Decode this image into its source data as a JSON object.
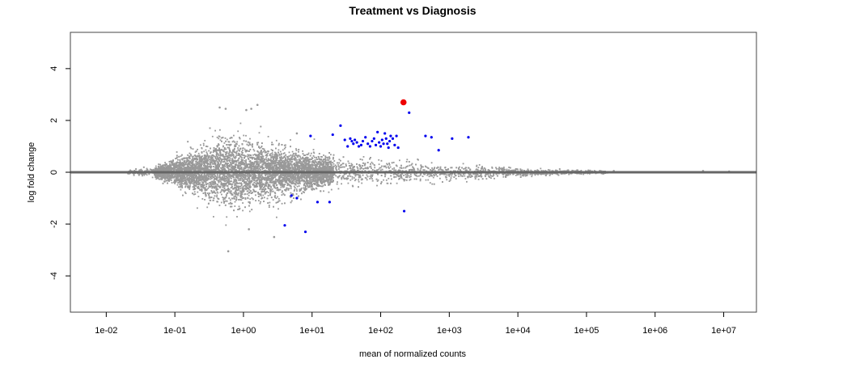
{
  "chart_data": {
    "type": "scatter",
    "title": "Treatment vs Diagnosis",
    "xlabel": "mean of normalized counts",
    "ylabel": "log fold change",
    "x_scale": "log10",
    "xlim": [
      0.003,
      30000000
    ],
    "ylim": [
      -5.4,
      5.4
    ],
    "x_ticks": [
      {
        "value": 0.01,
        "label": "1e-02"
      },
      {
        "value": 0.1,
        "label": "1e-01"
      },
      {
        "value": 1,
        "label": "1e+00"
      },
      {
        "value": 10,
        "label": "1e+01"
      },
      {
        "value": 100,
        "label": "1e+02"
      },
      {
        "value": 1000,
        "label": "1e+03"
      },
      {
        "value": 10000,
        "label": "1e+04"
      },
      {
        "value": 100000,
        "label": "1e+05"
      },
      {
        "value": 1000000,
        "label": "1e+06"
      },
      {
        "value": 10000000,
        "label": "1e+07"
      }
    ],
    "y_ticks": [
      {
        "value": 4,
        "label": "4"
      },
      {
        "value": 2,
        "label": "2"
      },
      {
        "value": 0,
        "label": "0"
      },
      {
        "value": -2,
        "label": "-2"
      },
      {
        "value": -4,
        "label": "-4"
      }
    ],
    "reference_line": {
      "y": 0,
      "color": "#666666"
    },
    "grid": false,
    "series": [
      {
        "color": "#999999",
        "cloud_bands": [
          {
            "x": 0.02,
            "spread": 0.08
          },
          {
            "x": 0.05,
            "spread": 0.18
          },
          {
            "x": 0.1,
            "spread": 0.45
          },
          {
            "x": 0.2,
            "spread": 0.8
          },
          {
            "x": 0.4,
            "spread": 1.15
          },
          {
            "x": 0.7,
            "spread": 1.25
          },
          {
            "x": 1.0,
            "spread": 1.15
          },
          {
            "x": 2.0,
            "spread": 0.95
          },
          {
            "x": 5.0,
            "spread": 0.75
          },
          {
            "x": 10,
            "spread": 0.6
          },
          {
            "x": 30,
            "spread": 0.5
          },
          {
            "x": 100,
            "spread": 0.42
          },
          {
            "x": 300,
            "spread": 0.36
          },
          {
            "x": 1000,
            "spread": 0.3
          },
          {
            "x": 3000,
            "spread": 0.22
          },
          {
            "x": 10000,
            "spread": 0.15
          },
          {
            "x": 50000,
            "spread": 0.08
          },
          {
            "x": 200000,
            "spread": 0.05
          }
        ],
        "points": [
          [
            0.45,
            2.5
          ],
          [
            0.55,
            2.45
          ],
          [
            1.1,
            2.4
          ],
          [
            1.3,
            2.45
          ],
          [
            1.6,
            2.6
          ],
          [
            0.6,
            -3.05
          ],
          [
            2.8,
            -2.5
          ],
          [
            1.2,
            -2.2
          ],
          [
            6.0,
            1.5
          ],
          [
            5000000,
            0.05
          ],
          [
            12000000,
            0.03
          ],
          [
            250000,
            0.05
          ]
        ]
      },
      {
        "color": "#0000ee",
        "points": [
          [
            9.5,
            1.4
          ],
          [
            20,
            1.45
          ],
          [
            26,
            1.8
          ],
          [
            30,
            1.25
          ],
          [
            33,
            1.0
          ],
          [
            36,
            1.3
          ],
          [
            38,
            1.2
          ],
          [
            40,
            1.1
          ],
          [
            42,
            1.25
          ],
          [
            45,
            1.15
          ],
          [
            48,
            1.0
          ],
          [
            52,
            1.05
          ],
          [
            55,
            1.2
          ],
          [
            60,
            1.35
          ],
          [
            65,
            1.1
          ],
          [
            70,
            1.0
          ],
          [
            75,
            1.2
          ],
          [
            80,
            1.3
          ],
          [
            85,
            1.05
          ],
          [
            90,
            1.55
          ],
          [
            95,
            1.15
          ],
          [
            100,
            1.0
          ],
          [
            105,
            1.25
          ],
          [
            110,
            1.1
          ],
          [
            115,
            1.5
          ],
          [
            120,
            1.3
          ],
          [
            125,
            1.1
          ],
          [
            130,
            0.95
          ],
          [
            135,
            1.2
          ],
          [
            140,
            1.4
          ],
          [
            150,
            1.3
          ],
          [
            160,
            1.05
          ],
          [
            170,
            1.4
          ],
          [
            180,
            0.95
          ],
          [
            260,
            2.3
          ],
          [
            450,
            1.4
          ],
          [
            550,
            1.35
          ],
          [
            700,
            0.85
          ],
          [
            1100,
            1.3
          ],
          [
            1900,
            1.35
          ],
          [
            4.0,
            -2.05
          ],
          [
            8.0,
            -2.3
          ],
          [
            12,
            -1.15
          ],
          [
            18,
            -1.15
          ],
          [
            220,
            -1.5
          ],
          [
            5,
            -0.9
          ],
          [
            6,
            -1.0
          ]
        ]
      },
      {
        "color": "#ee0000",
        "points": [
          [
            215,
            2.7
          ]
        ]
      }
    ]
  }
}
